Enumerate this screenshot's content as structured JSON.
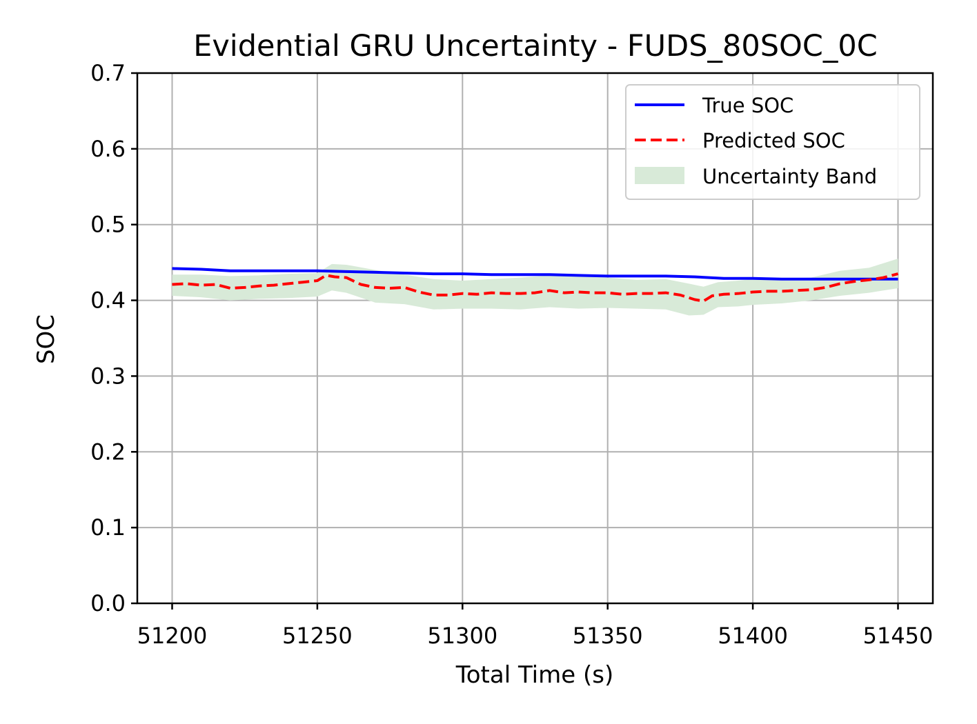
{
  "chart_data": {
    "type": "line",
    "title": "Evidential GRU Uncertainty - FUDS_80SOC_0C",
    "xlabel": "Total Time (s)",
    "ylabel": "SOC",
    "xlim": [
      51188,
      51462
    ],
    "ylim": [
      0.0,
      0.7
    ],
    "xticks": [
      51200,
      51250,
      51300,
      51350,
      51400,
      51450
    ],
    "yticks": [
      0.0,
      0.1,
      0.2,
      0.3,
      0.4,
      0.5,
      0.6,
      0.7
    ],
    "xtick_labels": [
      "51200",
      "51250",
      "51300",
      "51350",
      "51400",
      "51450"
    ],
    "ytick_labels": [
      "0.0",
      "0.1",
      "0.2",
      "0.3",
      "0.4",
      "0.5",
      "0.6",
      "0.7"
    ],
    "grid": true,
    "legend_position": "top-right",
    "series": [
      {
        "name": "True SOC",
        "style": "solid",
        "color": "#0000ff",
        "x": [
          51200,
          51210,
          51220,
          51230,
          51240,
          51250,
          51260,
          51270,
          51280,
          51290,
          51300,
          51310,
          51320,
          51330,
          51340,
          51350,
          51360,
          51370,
          51380,
          51390,
          51400,
          51410,
          51420,
          51430,
          51440,
          51450
        ],
        "values": [
          0.442,
          0.441,
          0.439,
          0.439,
          0.439,
          0.439,
          0.438,
          0.437,
          0.436,
          0.435,
          0.435,
          0.434,
          0.434,
          0.434,
          0.433,
          0.432,
          0.432,
          0.432,
          0.431,
          0.429,
          0.429,
          0.428,
          0.428,
          0.428,
          0.428,
          0.428
        ]
      },
      {
        "name": "Predicted SOC",
        "style": "dashed",
        "color": "#ff0000",
        "x": [
          51200,
          51205,
          51210,
          51215,
          51220,
          51225,
          51230,
          51235,
          51240,
          51245,
          51250,
          51253,
          51256,
          51260,
          51265,
          51270,
          51275,
          51280,
          51285,
          51290,
          51295,
          51300,
          51305,
          51310,
          51315,
          51320,
          51325,
          51330,
          51335,
          51340,
          51345,
          51350,
          51355,
          51360,
          51365,
          51370,
          51375,
          51380,
          51383,
          51386,
          51390,
          51395,
          51400,
          51405,
          51410,
          51415,
          51420,
          51425,
          51430,
          51435,
          51440,
          51445,
          51450
        ],
        "values": [
          0.421,
          0.422,
          0.42,
          0.421,
          0.416,
          0.417,
          0.419,
          0.42,
          0.422,
          0.424,
          0.426,
          0.433,
          0.431,
          0.43,
          0.421,
          0.417,
          0.416,
          0.417,
          0.411,
          0.407,
          0.407,
          0.409,
          0.408,
          0.41,
          0.409,
          0.409,
          0.41,
          0.413,
          0.41,
          0.411,
          0.41,
          0.41,
          0.408,
          0.409,
          0.409,
          0.41,
          0.407,
          0.401,
          0.399,
          0.406,
          0.408,
          0.409,
          0.411,
          0.412,
          0.412,
          0.413,
          0.414,
          0.417,
          0.422,
          0.425,
          0.427,
          0.43,
          0.435
        ]
      }
    ],
    "band": {
      "name": "Uncertainty Band",
      "color": "#d8ead8",
      "x": [
        51200,
        51210,
        51220,
        51230,
        51240,
        51250,
        51255,
        51260,
        51270,
        51280,
        51290,
        51300,
        51310,
        51320,
        51330,
        51340,
        51350,
        51360,
        51370,
        51378,
        51383,
        51388,
        51395,
        51400,
        51410,
        51420,
        51430,
        51440,
        51450
      ],
      "lower": [
        0.406,
        0.404,
        0.4,
        0.402,
        0.403,
        0.405,
        0.413,
        0.41,
        0.397,
        0.395,
        0.388,
        0.389,
        0.389,
        0.388,
        0.391,
        0.389,
        0.39,
        0.389,
        0.388,
        0.38,
        0.381,
        0.391,
        0.392,
        0.394,
        0.396,
        0.4,
        0.406,
        0.41,
        0.416
      ],
      "upper": [
        0.434,
        0.434,
        0.432,
        0.433,
        0.435,
        0.436,
        0.448,
        0.447,
        0.44,
        0.434,
        0.428,
        0.426,
        0.428,
        0.43,
        0.433,
        0.432,
        0.43,
        0.427,
        0.428,
        0.422,
        0.418,
        0.424,
        0.426,
        0.428,
        0.429,
        0.43,
        0.439,
        0.443,
        0.455
      ]
    }
  }
}
